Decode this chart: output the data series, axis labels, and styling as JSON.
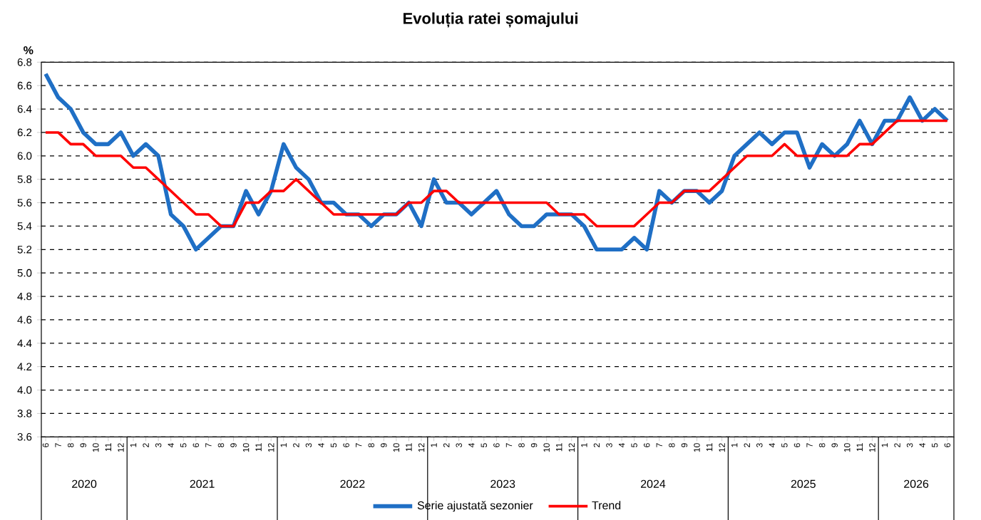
{
  "chart_data": {
    "type": "line",
    "title": "Evoluția ratei șomajului",
    "ylabel": "%",
    "x": [
      "2020-06",
      "2020-07",
      "2020-08",
      "2020-09",
      "2020-10",
      "2020-11",
      "2020-12",
      "2021-01",
      "2021-02",
      "2021-03",
      "2021-04",
      "2021-05",
      "2021-06",
      "2021-07",
      "2021-08",
      "2021-09",
      "2021-10",
      "2021-11",
      "2021-12",
      "2022-01",
      "2022-02",
      "2022-03",
      "2022-04",
      "2022-05",
      "2022-06",
      "2022-07",
      "2022-08",
      "2022-09",
      "2022-10",
      "2022-11",
      "2022-12",
      "2023-01",
      "2023-02",
      "2023-03",
      "2023-04",
      "2023-05",
      "2023-06",
      "2023-07",
      "2023-08",
      "2023-09",
      "2023-10",
      "2023-11",
      "2023-12",
      "2024-01",
      "2024-02",
      "2024-03",
      "2024-04",
      "2024-05",
      "2024-06",
      "2024-07",
      "2024-08",
      "2024-09",
      "2024-10",
      "2024-11",
      "2024-12",
      "2025-01",
      "2025-02",
      "2025-03",
      "2025-04",
      "2025-05",
      "2025-06",
      "2025-07",
      "2025-08",
      "2025-09",
      "2025-10",
      "2025-11",
      "2025-12",
      "2026-01",
      "2026-02",
      "2026-03",
      "2026-04",
      "2026-05",
      "2026-06"
    ],
    "series": [
      {
        "name": "Serie ajustată sezonier",
        "color": "#1f6fc5",
        "values": [
          6.7,
          6.5,
          6.4,
          6.2,
          6.1,
          6.1,
          6.2,
          6.0,
          6.1,
          6.0,
          5.5,
          5.4,
          5.2,
          5.3,
          5.4,
          5.4,
          5.7,
          5.5,
          5.7,
          6.1,
          5.9,
          5.8,
          5.6,
          5.6,
          5.5,
          5.5,
          5.4,
          5.5,
          5.5,
          5.6,
          5.4,
          5.8,
          5.6,
          5.6,
          5.5,
          5.6,
          5.7,
          5.5,
          5.4,
          5.4,
          5.5,
          5.5,
          5.5,
          5.4,
          5.2,
          5.2,
          5.2,
          5.3,
          5.2,
          5.7,
          5.6,
          5.7,
          5.7,
          5.6,
          5.7,
          6.0,
          6.1,
          6.2,
          6.1,
          6.2,
          6.2,
          5.9,
          6.1,
          6.0,
          6.1,
          6.3,
          6.1,
          6.3,
          6.3,
          6.5,
          6.3,
          6.4,
          6.3
        ]
      },
      {
        "name": "Trend",
        "color": "#ff0000",
        "values": [
          6.2,
          6.2,
          6.1,
          6.1,
          6.0,
          6.0,
          6.0,
          5.9,
          5.9,
          5.8,
          5.7,
          5.6,
          5.5,
          5.5,
          5.4,
          5.4,
          5.6,
          5.6,
          5.7,
          5.7,
          5.8,
          5.7,
          5.6,
          5.5,
          5.5,
          5.5,
          5.5,
          5.5,
          5.5,
          5.6,
          5.6,
          5.7,
          5.7,
          5.6,
          5.6,
          5.6,
          5.6,
          5.6,
          5.6,
          5.6,
          5.6,
          5.5,
          5.5,
          5.5,
          5.4,
          5.4,
          5.4,
          5.4,
          5.5,
          5.6,
          5.6,
          5.7,
          5.7,
          5.7,
          5.8,
          5.9,
          6.0,
          6.0,
          6.0,
          6.1,
          6.0,
          6.0,
          6.0,
          6.0,
          6.0,
          6.1,
          6.1,
          6.2,
          6.3,
          6.3,
          6.3,
          6.3,
          6.3
        ]
      }
    ],
    "xlim": [
      "2020-05-21",
      "2026-06-17"
    ],
    "xticks": [
      {
        "value": "2020-06",
        "label": "6"
      },
      {
        "value": "2020-07",
        "label": "7"
      },
      {
        "value": "2020-08",
        "label": "8"
      },
      {
        "value": "2020-09",
        "label": "9"
      },
      {
        "value": "2020-10",
        "label": "10"
      },
      {
        "value": "2020-11",
        "label": "11"
      },
      {
        "value": "2020-12",
        "label": "12"
      },
      {
        "value": "2021-01",
        "label": "1"
      },
      {
        "value": "2021-02",
        "label": "2"
      },
      {
        "value": "2021-03",
        "label": "3"
      },
      {
        "value": "2021-04",
        "label": "4"
      },
      {
        "value": "2021-05",
        "label": "5"
      },
      {
        "value": "2021-06",
        "label": "6"
      },
      {
        "value": "2021-07",
        "label": "7"
      },
      {
        "value": "2021-08",
        "label": "8"
      },
      {
        "value": "2021-09",
        "label": "9"
      },
      {
        "value": "2021-10",
        "label": "10"
      },
      {
        "value": "2021-11",
        "label": "11"
      },
      {
        "value": "2021-12",
        "label": "12"
      },
      {
        "value": "2022-01",
        "label": "1"
      },
      {
        "value": "2022-02",
        "label": "2"
      },
      {
        "value": "2022-03",
        "label": "3"
      },
      {
        "value": "2022-04",
        "label": "4"
      },
      {
        "value": "2022-05",
        "label": "5"
      },
      {
        "value": "2022-06",
        "label": "6"
      },
      {
        "value": "2022-07",
        "label": "7"
      },
      {
        "value": "2022-08",
        "label": "8"
      },
      {
        "value": "2022-09",
        "label": "9"
      },
      {
        "value": "2022-10",
        "label": "10"
      },
      {
        "value": "2022-11",
        "label": "11"
      },
      {
        "value": "2022-12",
        "label": "12"
      },
      {
        "value": "2023-01",
        "label": "1"
      },
      {
        "value": "2023-02",
        "label": "2"
      },
      {
        "value": "2023-03",
        "label": "3"
      },
      {
        "value": "2023-04",
        "label": "4"
      },
      {
        "value": "2023-05",
        "label": "5"
      },
      {
        "value": "2023-06",
        "label": "6"
      },
      {
        "value": "2023-07",
        "label": "7"
      },
      {
        "value": "2023-08",
        "label": "8"
      },
      {
        "value": "2023-09",
        "label": "9"
      },
      {
        "value": "2023-10",
        "label": "10"
      },
      {
        "value": "2023-11",
        "label": "11"
      },
      {
        "value": "2023-12",
        "label": "12"
      },
      {
        "value": "2024-01",
        "label": "1"
      },
      {
        "value": "2024-02",
        "label": "2"
      },
      {
        "value": "2024-03",
        "label": "3"
      },
      {
        "value": "2024-04",
        "label": "4"
      },
      {
        "value": "2024-05",
        "label": "5"
      },
      {
        "value": "2024-06",
        "label": "6"
      },
      {
        "value": "2024-07",
        "label": "7"
      },
      {
        "value": "2024-08",
        "label": "8"
      },
      {
        "value": "2024-09",
        "label": "9"
      },
      {
        "value": "2024-10",
        "label": "10"
      },
      {
        "value": "2024-11",
        "label": "11"
      },
      {
        "value": "2024-12",
        "label": "12"
      },
      {
        "value": "2025-01",
        "label": "1"
      },
      {
        "value": "2025-02",
        "label": "2"
      },
      {
        "value": "2025-03",
        "label": "3"
      },
      {
        "value": "2025-04",
        "label": "4"
      },
      {
        "value": "2025-05",
        "label": "5"
      },
      {
        "value": "2025-06",
        "label": "6"
      },
      {
        "value": "2025-07",
        "label": "7"
      },
      {
        "value": "2025-08",
        "label": "8"
      },
      {
        "value": "2025-09",
        "label": "9"
      },
      {
        "value": "2025-10",
        "label": "10"
      },
      {
        "value": "2025-11",
        "label": "11"
      },
      {
        "value": "2025-12",
        "label": "12"
      },
      {
        "value": "2026-01",
        "label": "1"
      },
      {
        "value": "2026-02",
        "label": "2"
      },
      {
        "value": "2026-03",
        "label": "3"
      },
      {
        "value": "2026-04",
        "label": "4"
      },
      {
        "value": "2026-05",
        "label": "5"
      },
      {
        "value": "2026-06",
        "label": "6"
      }
    ],
    "ylim": [
      3.6,
      6.8
    ],
    "yticks": [
      3.6,
      3.8,
      {
        "value": 4.0,
        "label": "4.0"
      },
      4.2,
      4.4,
      4.6,
      4.8,
      {
        "value": 5.0,
        "label": "5.0"
      },
      5.2,
      5.4,
      5.6,
      5.8,
      {
        "value": 6.0,
        "label": "6.0"
      },
      6.2,
      6.4,
      6.6,
      6.8
    ],
    "grid": "y",
    "legend": "bottom",
    "marker": "none",
    "line_style": "solid",
    "annotations": [
      "2020",
      "2021",
      "2022",
      "2023",
      "2024",
      "2025",
      "2026"
    ]
  }
}
